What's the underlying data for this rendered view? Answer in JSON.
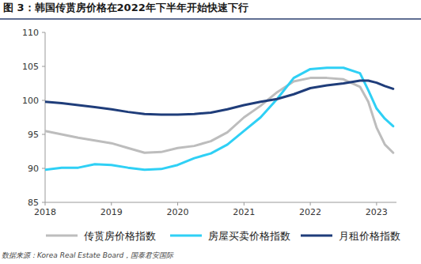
{
  "chart_data": {
    "type": "line",
    "title": "图 3：韩国传贳房价格在2022年下半年开始快速下行",
    "source": "数据来源：Korea Real Estate Board，国泰君安国际",
    "x": [
      2018,
      2018.25,
      2018.5,
      2018.75,
      2019,
      2019.25,
      2019.5,
      2019.75,
      2020,
      2020.25,
      2020.5,
      2020.75,
      2021,
      2021.25,
      2021.5,
      2021.75,
      2022,
      2022.25,
      2022.5,
      2022.75,
      2022.875,
      2023,
      2023.125,
      2023.25
    ],
    "series": [
      {
        "name": "传贳房价格指数",
        "color": "#bdbdbd",
        "values": [
          95.5,
          95.0,
          94.5,
          94.1,
          93.7,
          93.0,
          92.3,
          92.4,
          93.0,
          93.3,
          94.0,
          95.3,
          97.5,
          99.2,
          101.2,
          102.8,
          103.3,
          103.3,
          103.1,
          102.0,
          99.8,
          96.0,
          93.5,
          92.3
        ]
      },
      {
        "name": "房屋买卖价格指数",
        "color": "#2fd0f5",
        "values": [
          89.8,
          90.1,
          90.1,
          90.6,
          90.5,
          90.1,
          89.8,
          89.9,
          90.5,
          91.5,
          92.2,
          93.5,
          95.5,
          97.5,
          100.2,
          103.3,
          104.6,
          104.8,
          104.8,
          104.0,
          101.5,
          98.8,
          97.3,
          96.2
        ]
      },
      {
        "name": "月租价格指数",
        "color": "#1f3d7a",
        "values": [
          99.8,
          99.6,
          99.3,
          99.0,
          98.7,
          98.3,
          98.0,
          97.9,
          97.9,
          98.0,
          98.2,
          98.7,
          99.3,
          99.8,
          100.2,
          100.9,
          101.8,
          102.2,
          102.5,
          102.9,
          102.9,
          102.6,
          102.1,
          101.7
        ]
      }
    ],
    "xlim": [
      2018,
      2023.3
    ],
    "xticks": [
      2018,
      2019,
      2020,
      2021,
      2022,
      2023
    ],
    "ylim": [
      85,
      110
    ],
    "yticks": [
      85,
      90,
      95,
      100,
      105,
      110
    ],
    "grid": false,
    "legend": "bottom"
  }
}
